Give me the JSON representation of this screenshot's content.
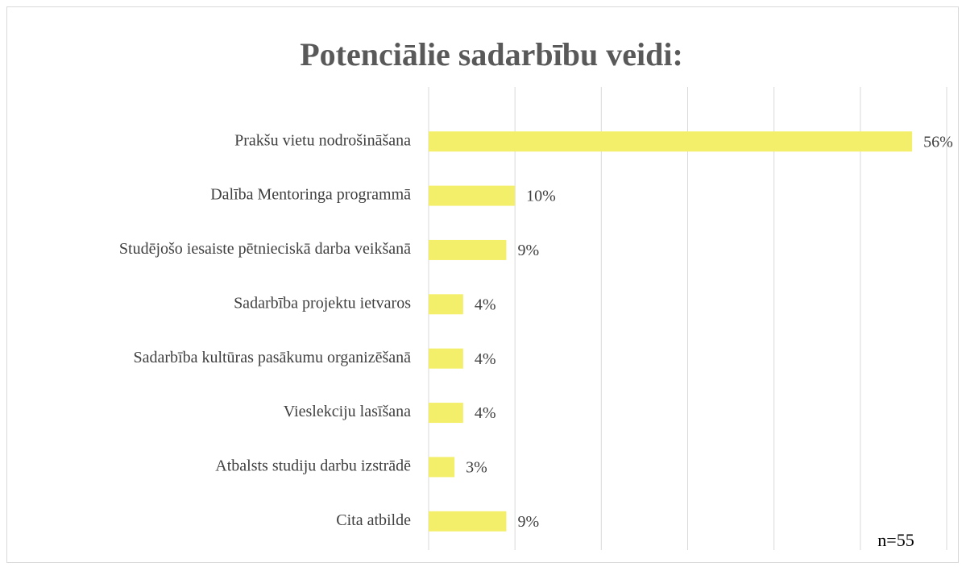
{
  "chart_data": {
    "type": "bar",
    "orientation": "horizontal",
    "title": "Potenciālie sadarbību veidi:",
    "categories": [
      "Prakšu vietu nodrošināšana",
      "Dalība Mentoringa programmā",
      "Studējošo iesaiste pētnieciskā darba veikšanā",
      "Sadarbība projektu ietvaros",
      "Sadarbība kultūras pasākumu organizēšanā",
      "Vieslekciju lasīšana",
      "Atbalsts studiju darbu izstrādē",
      "Cita atbilde"
    ],
    "values": [
      56,
      10,
      9,
      4,
      4,
      4,
      3,
      9
    ],
    "value_labels": [
      "56%",
      "10%",
      "9%",
      "4%",
      "4%",
      "4%",
      "3%",
      "9%"
    ],
    "color": "#f3ef6b",
    "xlim": [
      0,
      60
    ],
    "xticks": [
      0,
      10,
      20,
      30,
      40,
      50,
      60
    ],
    "grid": true,
    "annotation": "n=55"
  }
}
